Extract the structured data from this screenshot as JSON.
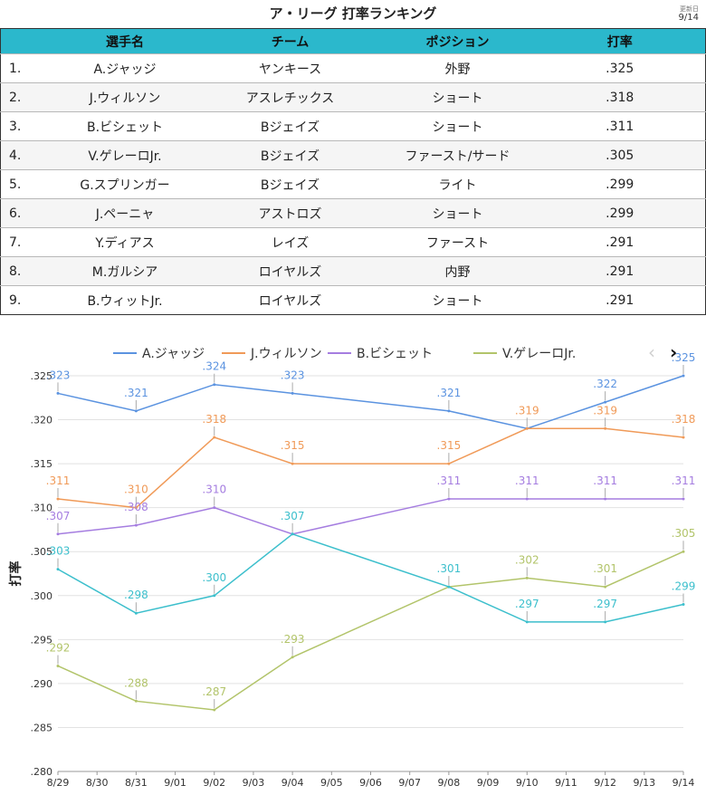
{
  "page": {
    "title": "ア・リーグ 打率ランキング",
    "updated_label": "更新日",
    "updated_date": "9/14"
  },
  "table": {
    "headers": [
      "",
      "選手名",
      "チーム",
      "ポジション",
      "打率"
    ],
    "rows": [
      {
        "rank": "1.",
        "name": "A.ジャッジ",
        "team": "ヤンキース",
        "position": "外野",
        "avg": ".325"
      },
      {
        "rank": "2.",
        "name": "J.ウィルソン",
        "team": "アスレチックス",
        "position": "ショート",
        "avg": ".318"
      },
      {
        "rank": "3.",
        "name": "B.ビシェット",
        "team": "Bジェイズ",
        "position": "ショート",
        "avg": ".311"
      },
      {
        "rank": "4.",
        "name": "V.ゲレーロJr.",
        "team": "Bジェイズ",
        "position": "ファースト/サード",
        "avg": ".305"
      },
      {
        "rank": "5.",
        "name": "G.スプリンガー",
        "team": "Bジェイズ",
        "position": "ライト",
        "avg": ".299"
      },
      {
        "rank": "6.",
        "name": "J.ペーニャ",
        "team": "アストロズ",
        "position": "ショート",
        "avg": ".299"
      },
      {
        "rank": "7.",
        "name": "Y.ディアス",
        "team": "レイズ",
        "position": "ファースト",
        "avg": ".291"
      },
      {
        "rank": "8.",
        "name": "M.ガルシア",
        "team": "ロイヤルズ",
        "position": "内野",
        "avg": ".291"
      },
      {
        "rank": "9.",
        "name": "B.ウィットJr.",
        "team": "ロイヤルズ",
        "position": "ショート",
        "avg": ".291"
      }
    ]
  },
  "chart_data": {
    "type": "line",
    "ylabel": "打率",
    "ylim": [
      0.28,
      0.325
    ],
    "yticks": [
      0.28,
      0.285,
      0.29,
      0.295,
      0.3,
      0.305,
      0.31,
      0.315,
      0.32,
      0.325
    ],
    "ytick_labels": [
      ".280",
      ".285",
      ".290",
      ".295",
      ".300",
      ".305",
      ".310",
      ".315",
      ".320",
      ".325"
    ],
    "categories": [
      "8/29",
      "8/30",
      "8/31",
      "9/01",
      "9/02",
      "9/03",
      "9/04",
      "9/05",
      "9/06",
      "9/07",
      "9/08",
      "9/09",
      "9/10",
      "9/11",
      "9/12",
      "9/13",
      "9/14"
    ],
    "grid": true,
    "legend_position": "top",
    "series": [
      {
        "name": "A.ジャッジ",
        "color": "#5b93e0",
        "points": [
          {
            "x": "8/29",
            "y": 0.323,
            "label": ".323"
          },
          {
            "x": "8/31",
            "y": 0.321,
            "label": ".321"
          },
          {
            "x": "9/02",
            "y": 0.324,
            "label": ".324"
          },
          {
            "x": "9/04",
            "y": 0.323,
            "label": ".323"
          },
          {
            "x": "9/08",
            "y": 0.321,
            "label": ".321"
          },
          {
            "x": "9/10",
            "y": 0.319,
            "label": ""
          },
          {
            "x": "9/12",
            "y": 0.322,
            "label": ".322"
          },
          {
            "x": "9/14",
            "y": 0.325,
            "label": ".325"
          }
        ]
      },
      {
        "name": "J.ウィルソン",
        "color": "#f09a58",
        "points": [
          {
            "x": "8/29",
            "y": 0.311,
            "label": ".311"
          },
          {
            "x": "8/31",
            "y": 0.31,
            "label": ".310"
          },
          {
            "x": "9/02",
            "y": 0.318,
            "label": ".318"
          },
          {
            "x": "9/04",
            "y": 0.315,
            "label": ".315"
          },
          {
            "x": "9/08",
            "y": 0.315,
            "label": ".315"
          },
          {
            "x": "9/10",
            "y": 0.319,
            "label": ".319"
          },
          {
            "x": "9/12",
            "y": 0.319,
            "label": ".319"
          },
          {
            "x": "9/14",
            "y": 0.318,
            "label": ".318"
          }
        ]
      },
      {
        "name": "B.ビシェット",
        "color": "#a57de0",
        "points": [
          {
            "x": "8/29",
            "y": 0.307,
            "label": ".307"
          },
          {
            "x": "8/31",
            "y": 0.308,
            "label": ".308"
          },
          {
            "x": "9/02",
            "y": 0.31,
            "label": ".310"
          },
          {
            "x": "9/04",
            "y": 0.307,
            "label": ""
          },
          {
            "x": "9/08",
            "y": 0.311,
            "label": ".311"
          },
          {
            "x": "9/10",
            "y": 0.311,
            "label": ".311"
          },
          {
            "x": "9/12",
            "y": 0.311,
            "label": ".311"
          },
          {
            "x": "9/14",
            "y": 0.311,
            "label": ".311"
          }
        ]
      },
      {
        "name": "V.ゲレーロJr.",
        "color": "#b2c46a",
        "points": [
          {
            "x": "8/29",
            "y": 0.292,
            "label": ".292"
          },
          {
            "x": "8/31",
            "y": 0.288,
            "label": ".288"
          },
          {
            "x": "9/02",
            "y": 0.287,
            "label": ".287"
          },
          {
            "x": "9/04",
            "y": 0.293,
            "label": ".293"
          },
          {
            "x": "9/08",
            "y": 0.301,
            "label": ""
          },
          {
            "x": "9/10",
            "y": 0.302,
            "label": ".302"
          },
          {
            "x": "9/12",
            "y": 0.301,
            "label": ".301"
          },
          {
            "x": "9/14",
            "y": 0.305,
            "label": ".305"
          }
        ]
      },
      {
        "name": "",
        "color": "#3cbfcc",
        "show_in_legend": false,
        "points": [
          {
            "x": "8/29",
            "y": 0.303,
            "label": ".303"
          },
          {
            "x": "8/31",
            "y": 0.298,
            "label": ".298"
          },
          {
            "x": "9/02",
            "y": 0.3,
            "label": ".300"
          },
          {
            "x": "9/04",
            "y": 0.307,
            "label": ".307"
          },
          {
            "x": "9/08",
            "y": 0.301,
            "label": ".301"
          },
          {
            "x": "9/10",
            "y": 0.297,
            "label": ".297"
          },
          {
            "x": "9/12",
            "y": 0.297,
            "label": ".297"
          },
          {
            "x": "9/14",
            "y": 0.299,
            "label": ".299"
          }
        ]
      }
    ]
  },
  "nav": {
    "prev_icon": "chevron-left-icon",
    "next_icon": "chevron-right-icon"
  }
}
